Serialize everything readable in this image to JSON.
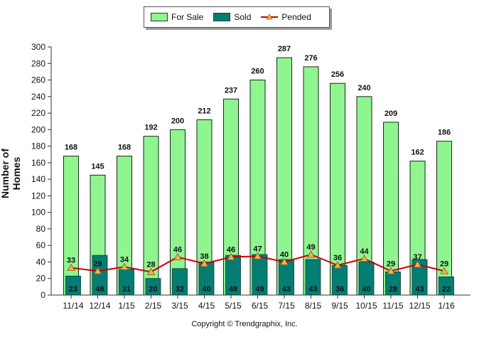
{
  "legend": {
    "for_sale_label": "For Sale",
    "sold_label": "Sold",
    "pended_label": "Pended"
  },
  "footer": {
    "copyright": "Copyright © Trendgraphix, Inc."
  },
  "colors": {
    "for_sale": "#8ff58f",
    "sold": "#047e74",
    "pended": "#cc0000",
    "pended_marker": "#f0b050"
  },
  "chart_data": {
    "type": "bar",
    "title": "",
    "xlabel": "",
    "ylabel": "Number of Homes",
    "ylim": [
      0,
      300
    ],
    "yticks": [
      0,
      20,
      40,
      60,
      80,
      100,
      120,
      140,
      160,
      180,
      200,
      220,
      240,
      260,
      280,
      300
    ],
    "grid": false,
    "legend_position": "top-center",
    "categories": [
      "11/14",
      "12/14",
      "1/15",
      "2/15",
      "3/15",
      "4/15",
      "5/15",
      "6/15",
      "7/15",
      "8/15",
      "9/15",
      "10/15",
      "11/15",
      "12/15",
      "1/16"
    ],
    "series": [
      {
        "name": "For Sale",
        "type": "bar",
        "values": [
          168,
          145,
          168,
          192,
          200,
          212,
          237,
          260,
          287,
          276,
          256,
          240,
          209,
          162,
          186
        ]
      },
      {
        "name": "Sold",
        "type": "bar",
        "values": [
          23,
          48,
          31,
          20,
          32,
          40,
          48,
          49,
          43,
          43,
          36,
          40,
          28,
          43,
          22
        ]
      },
      {
        "name": "Pended",
        "type": "line",
        "values": [
          33,
          29,
          34,
          28,
          46,
          38,
          46,
          47,
          40,
          49,
          36,
          44,
          29,
          37,
          29
        ]
      }
    ]
  }
}
